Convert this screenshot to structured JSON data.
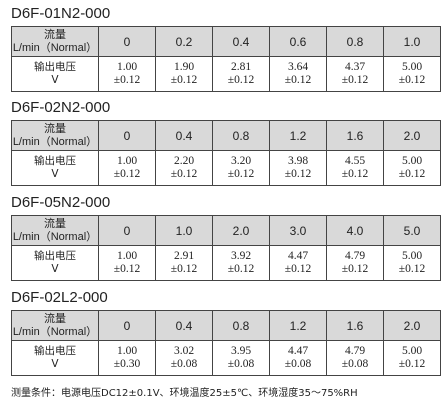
{
  "sections": [
    {
      "title": "D6F-01N2-000",
      "table": {
        "header": {
          "label": [
            "流量",
            "L/min（Normal）"
          ],
          "values": [
            "0",
            "0.2",
            "0.4",
            "0.6",
            "0.8",
            "1.0"
          ]
        },
        "row": {
          "label": [
            "输出电压",
            "V"
          ],
          "cells": [
            [
              "1.00",
              "±0.12"
            ],
            [
              "1.90",
              "±0.12"
            ],
            [
              "2.81",
              "±0.12"
            ],
            [
              "3.64",
              "±0.12"
            ],
            [
              "4.37",
              "±0.12"
            ],
            [
              "5.00",
              "±0.12"
            ]
          ]
        }
      }
    },
    {
      "title": "D6F-02N2-000",
      "table": {
        "header": {
          "label": [
            "流量",
            "L/min（Normal）"
          ],
          "values": [
            "0",
            "0.4",
            "0.8",
            "1.2",
            "1.6",
            "2.0"
          ]
        },
        "row": {
          "label": [
            "输出电压",
            "V"
          ],
          "cells": [
            [
              "1.00",
              "±0.12"
            ],
            [
              "2.20",
              "±0.12"
            ],
            [
              "3.20",
              "±0.12"
            ],
            [
              "3.98",
              "±0.12"
            ],
            [
              "4.55",
              "±0.12"
            ],
            [
              "5.00",
              "±0.12"
            ]
          ]
        }
      }
    },
    {
      "title": "D6F-05N2-000",
      "table": {
        "header": {
          "label": [
            "流量",
            "L/min（Normal）"
          ],
          "values": [
            "0",
            "1.0",
            "2.0",
            "3.0",
            "4.0",
            "5.0"
          ]
        },
        "row": {
          "label": [
            "输出电压",
            "V"
          ],
          "cells": [
            [
              "1.00",
              "±0.12"
            ],
            [
              "2.91",
              "±0.12"
            ],
            [
              "3.92",
              "±0.12"
            ],
            [
              "4.47",
              "±0.12"
            ],
            [
              "4.79",
              "±0.12"
            ],
            [
              "5.00",
              "±0.12"
            ]
          ]
        }
      }
    },
    {
      "title": "D6F-02L2-000",
      "table": {
        "header": {
          "label": [
            "流量",
            "L/min（Normal）"
          ],
          "values": [
            "0",
            "0.4",
            "0.8",
            "1.2",
            "1.6",
            "2.0"
          ]
        },
        "row": {
          "label": [
            "输出电压",
            "V"
          ],
          "cells": [
            [
              "1.00",
              "±0.30"
            ],
            [
              "3.02",
              "±0.08"
            ],
            [
              "3.95",
              "±0.08"
            ],
            [
              "4.47",
              "±0.08"
            ],
            [
              "4.79",
              "±0.08"
            ],
            [
              "5.00",
              "±0.12"
            ]
          ]
        }
      }
    }
  ],
  "footer": "测量条件：电源电压DC12±0.1V、环境温度25±5℃、环境湿度35～75%RH"
}
